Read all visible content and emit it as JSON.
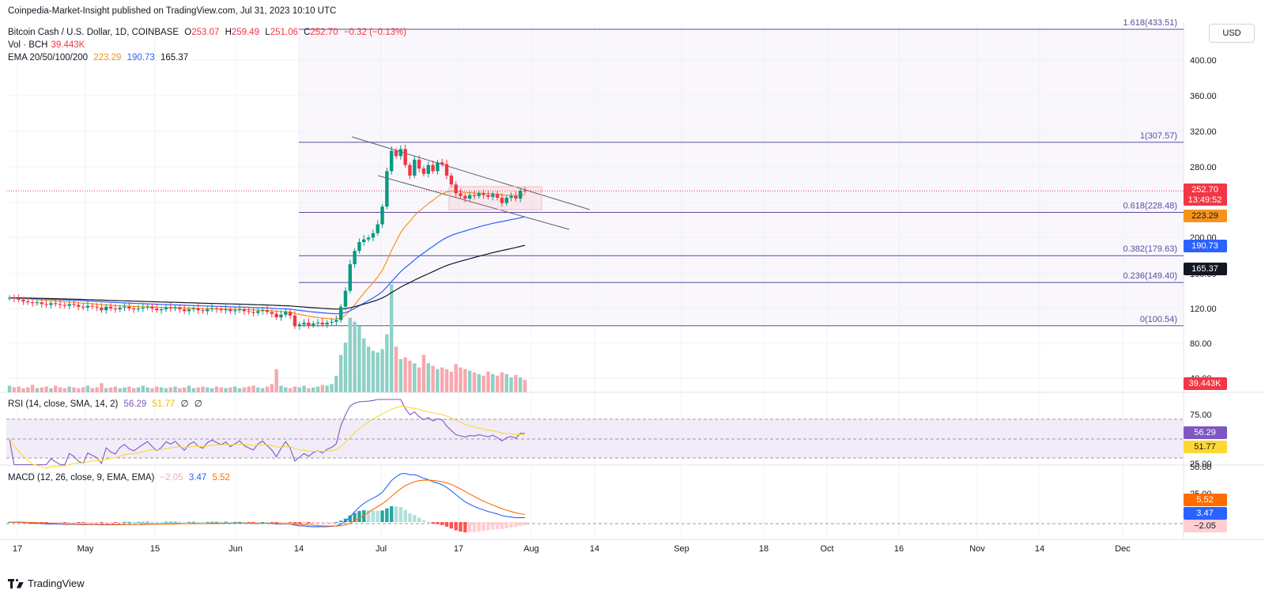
{
  "header": {
    "published": "Coinpedia-Market-Insight published on TradingView.com, Jul 31, 2023 10:10 UTC",
    "symbol": "Bitcoin Cash / U.S. Dollar, 1D, COINBASE",
    "o_label": "O",
    "o_value": "253.07",
    "h_label": "H",
    "h_value": "259.49",
    "l_label": "L",
    "l_value": "251.06",
    "c_label": "C",
    "c_value": "252.70",
    "change": "−0.32 (−0.13%)",
    "vol_label": "Vol · BCH",
    "vol_value": "39.443K",
    "ema_label": "EMA 20/50/100/200",
    "ema20": "223.29",
    "ema50": "190.73",
    "ema100": "165.37"
  },
  "currency": "USD",
  "footer": {
    "brand": "TradingView"
  },
  "colors": {
    "up": "#089981",
    "down": "#f23645",
    "ema20": "#f7931a",
    "ema50": "#2962ff",
    "ema100": "#131722",
    "fib": "#5b4a9e",
    "rsi": "#7e57c2",
    "rsi_sma": "#fdd835",
    "macd": "#2962ff",
    "signal": "#ff6d00"
  },
  "chart_data": [
    {
      "type": "candlestick",
      "title": "Bitcoin Cash / U.S. Dollar, 1D, COINBASE",
      "ylim": [
        40,
        440
      ],
      "y_ticks": [
        "400.00",
        "360.00",
        "320.00",
        "280.00",
        "240.00",
        "200.00",
        "160.00",
        "120.00",
        "80.00",
        "40.00"
      ],
      "x_ticks": [
        "17",
        "May",
        "15",
        "Jun",
        "14",
        "Jul",
        "17",
        "Aug",
        "14",
        "Sep",
        "18",
        "Oct",
        "16",
        "Nov",
        "14",
        "Dec"
      ],
      "last_price": "252.70",
      "countdown": "13:49:52",
      "fib_levels": [
        {
          "label": "1.618(433.51)",
          "value": 433.51
        },
        {
          "label": "1(307.57)",
          "value": 307.57
        },
        {
          "label": "0.618(228.48)",
          "value": 228.48
        },
        {
          "label": "0.382(179.63)",
          "value": 179.63
        },
        {
          "label": "0.236(149.40)",
          "value": 149.4
        },
        {
          "label": "0(100.54)",
          "value": 100.54
        }
      ],
      "ema_badges": [
        "223.29",
        "190.73",
        "165.37"
      ],
      "volume_badge": "39.443K",
      "closes": [
        132,
        131,
        130,
        128,
        127,
        126,
        127,
        125,
        124,
        126,
        125,
        124,
        123,
        125,
        124,
        122,
        121,
        123,
        122,
        121,
        118,
        122,
        120,
        119,
        121,
        122,
        120,
        119,
        120,
        121,
        122,
        120,
        118,
        119,
        121,
        120,
        121,
        119,
        117,
        119,
        120,
        118,
        117,
        119,
        120,
        119,
        118,
        119,
        117,
        118,
        119,
        117,
        116,
        115,
        117,
        118,
        116,
        114,
        110,
        113,
        116,
        112,
        100,
        102,
        104,
        101,
        103,
        104,
        102,
        104,
        105,
        107,
        122,
        140,
        170,
        185,
        195,
        198,
        200,
        205,
        215,
        235,
        275,
        298,
        292,
        300,
        282,
        270,
        288,
        278,
        272,
        282,
        275,
        285,
        283,
        270,
        260,
        250,
        247,
        244,
        248,
        247,
        250,
        248,
        246,
        249,
        245,
        239,
        245,
        247,
        244,
        253,
        252.7
      ],
      "volumes": [
        8,
        6,
        7,
        5,
        6,
        9,
        5,
        6,
        7,
        5,
        8,
        6,
        5,
        7,
        6,
        5,
        6,
        8,
        5,
        6,
        11,
        5,
        6,
        7,
        5,
        6,
        7,
        5,
        6,
        8,
        6,
        5,
        7,
        6,
        5,
        6,
        7,
        5,
        6,
        8,
        5,
        6,
        7,
        6,
        5,
        7,
        6,
        5,
        6,
        7,
        5,
        6,
        7,
        8,
        6,
        5,
        7,
        10,
        28,
        8,
        6,
        5,
        7,
        6,
        8,
        5,
        6,
        7,
        9,
        8,
        10,
        20,
        45,
        60,
        90,
        85,
        80,
        65,
        55,
        50,
        48,
        52,
        70,
        130,
        55,
        40,
        42,
        38,
        35,
        30,
        45,
        35,
        32,
        28,
        30,
        28,
        25,
        34,
        30,
        28,
        26,
        24,
        22,
        20,
        25,
        22,
        20,
        24,
        22,
        18,
        21,
        18,
        15
      ]
    },
    {
      "type": "line",
      "title": "RSI (14, close, SMA, 14, 2)",
      "values_label": [
        "56.29",
        "51.77",
        "∅",
        "∅"
      ],
      "ylim": [
        20,
        90
      ],
      "y_ticks": [
        "75.00",
        "25.00"
      ],
      "bands": [
        70,
        30
      ],
      "series": [
        {
          "name": "RSI",
          "last": "56.29"
        },
        {
          "name": "SMA",
          "last": "51.77"
        }
      ]
    },
    {
      "type": "line",
      "title": "MACD (12, 26, close, 9, EMA, EMA)",
      "values_label": [
        "−2.05",
        "3.47",
        "5.52"
      ],
      "y_ticks": [
        "50.00",
        "25.00"
      ],
      "series": [
        {
          "name": "Histogram",
          "last": "−2.05"
        },
        {
          "name": "MACD",
          "last": "3.47"
        },
        {
          "name": "Signal",
          "last": "5.52"
        }
      ]
    }
  ]
}
